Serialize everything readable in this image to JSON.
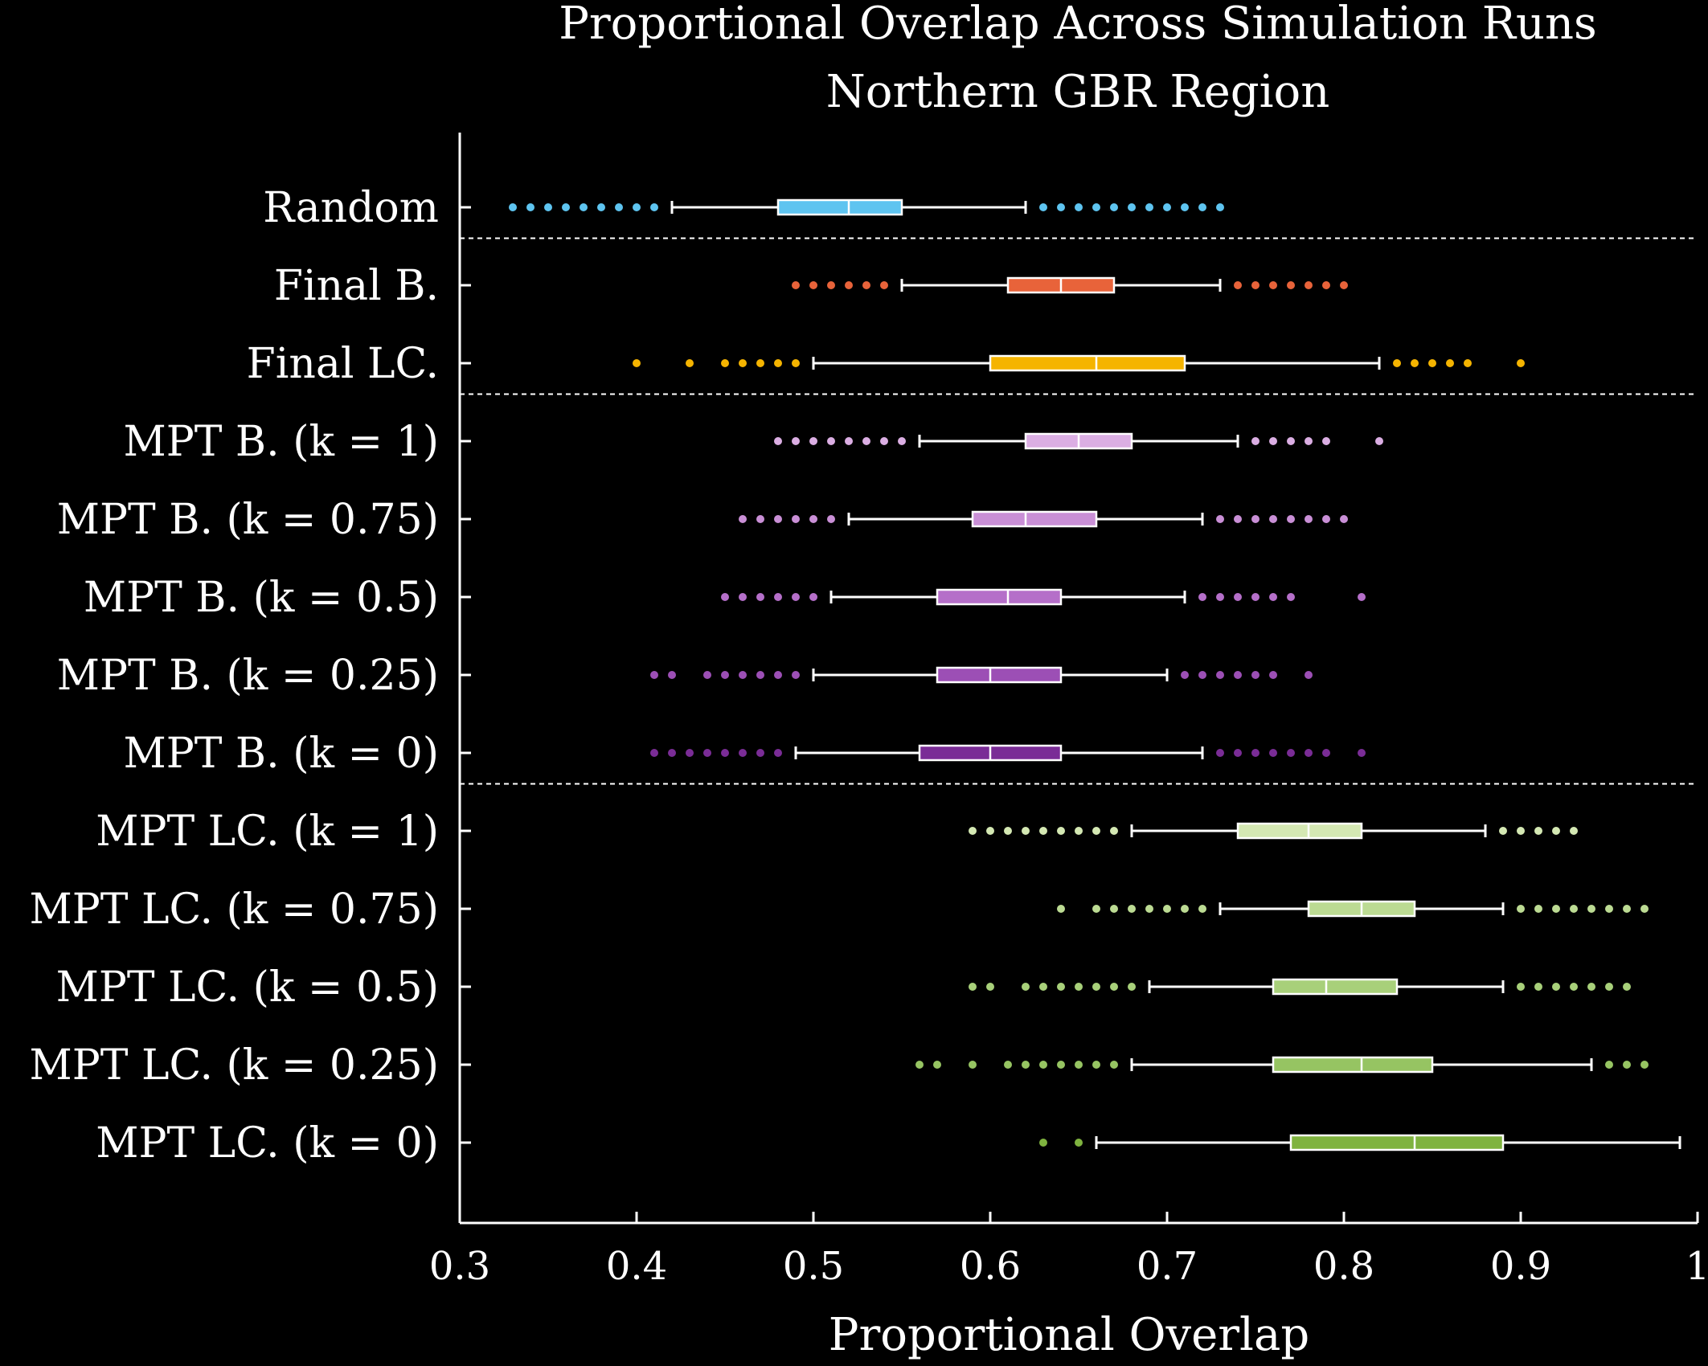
{
  "chart_data": {
    "type": "box",
    "title": "Proportional Overlap Across Simulation Runs",
    "subtitle": "Northern GBR Region",
    "xlabel": "Proportional Overlap",
    "ylabel": "",
    "xlim": [
      0.3,
      1.0
    ],
    "xticks": [
      "0.3",
      "0.4",
      "0.5",
      "0.6",
      "0.7",
      "0.8",
      "0.9",
      "1"
    ],
    "grid": false,
    "series": [
      {
        "name": "Random",
        "color": "#5ec4f0",
        "q1": 0.48,
        "median": 0.52,
        "q3": 0.55,
        "whisker_low": 0.42,
        "whisker_high": 0.62,
        "outliers": [
          0.33,
          0.34,
          0.35,
          0.36,
          0.37,
          0.38,
          0.39,
          0.4,
          0.41,
          0.63,
          0.64,
          0.65,
          0.66,
          0.67,
          0.68,
          0.69,
          0.7,
          0.71,
          0.72,
          0.73
        ]
      },
      {
        "name": "Final B.",
        "color": "#e8633a",
        "q1": 0.61,
        "median": 0.64,
        "q3": 0.67,
        "whisker_low": 0.55,
        "whisker_high": 0.73,
        "outliers": [
          0.49,
          0.5,
          0.51,
          0.52,
          0.53,
          0.54,
          0.74,
          0.75,
          0.76,
          0.77,
          0.78,
          0.79,
          0.8
        ]
      },
      {
        "name": "Final LC.",
        "color": "#f5b400",
        "q1": 0.6,
        "median": 0.66,
        "q3": 0.71,
        "whisker_low": 0.5,
        "whisker_high": 0.82,
        "outliers": [
          0.4,
          0.43,
          0.45,
          0.46,
          0.47,
          0.48,
          0.49,
          0.83,
          0.84,
          0.85,
          0.86,
          0.87,
          0.9
        ]
      },
      {
        "name": "MPT B. (k = 1)",
        "color": "#dbaee3",
        "q1": 0.62,
        "median": 0.65,
        "q3": 0.68,
        "whisker_low": 0.56,
        "whisker_high": 0.74,
        "outliers": [
          0.48,
          0.49,
          0.5,
          0.51,
          0.52,
          0.53,
          0.54,
          0.55,
          0.75,
          0.76,
          0.77,
          0.78,
          0.79,
          0.82
        ]
      },
      {
        "name": "MPT B. (k = 0.75)",
        "color": "#c98fd6",
        "q1": 0.59,
        "median": 0.62,
        "q3": 0.66,
        "whisker_low": 0.52,
        "whisker_high": 0.72,
        "outliers": [
          0.46,
          0.47,
          0.48,
          0.49,
          0.5,
          0.51,
          0.73,
          0.74,
          0.75,
          0.76,
          0.77,
          0.78,
          0.79,
          0.8
        ]
      },
      {
        "name": "MPT B. (k = 0.5)",
        "color": "#b56fc9",
        "q1": 0.57,
        "median": 0.61,
        "q3": 0.64,
        "whisker_low": 0.51,
        "whisker_high": 0.71,
        "outliers": [
          0.45,
          0.46,
          0.47,
          0.48,
          0.49,
          0.5,
          0.72,
          0.73,
          0.74,
          0.75,
          0.76,
          0.77,
          0.81
        ]
      },
      {
        "name": "MPT B. (k = 0.25)",
        "color": "#9c4fb5",
        "q1": 0.57,
        "median": 0.6,
        "q3": 0.64,
        "whisker_low": 0.5,
        "whisker_high": 0.7,
        "outliers": [
          0.41,
          0.42,
          0.44,
          0.45,
          0.46,
          0.47,
          0.48,
          0.49,
          0.71,
          0.72,
          0.73,
          0.74,
          0.75,
          0.76,
          0.78
        ]
      },
      {
        "name": "MPT B. (k = 0)",
        "color": "#7a2c96",
        "q1": 0.56,
        "median": 0.6,
        "q3": 0.64,
        "whisker_low": 0.49,
        "whisker_high": 0.72,
        "outliers": [
          0.41,
          0.42,
          0.43,
          0.44,
          0.45,
          0.46,
          0.47,
          0.48,
          0.73,
          0.74,
          0.75,
          0.76,
          0.77,
          0.78,
          0.79,
          0.81
        ]
      },
      {
        "name": "MPT LC. (k = 1)",
        "color": "#d4e8b3",
        "q1": 0.74,
        "median": 0.78,
        "q3": 0.81,
        "whisker_low": 0.68,
        "whisker_high": 0.88,
        "outliers": [
          0.59,
          0.6,
          0.61,
          0.62,
          0.63,
          0.64,
          0.65,
          0.66,
          0.67,
          0.89,
          0.9,
          0.91,
          0.92,
          0.93
        ]
      },
      {
        "name": "MPT LC. (k = 0.75)",
        "color": "#bcdb93",
        "q1": 0.78,
        "median": 0.81,
        "q3": 0.84,
        "whisker_low": 0.73,
        "whisker_high": 0.89,
        "outliers": [
          0.64,
          0.66,
          0.67,
          0.68,
          0.69,
          0.7,
          0.71,
          0.72,
          0.9,
          0.91,
          0.92,
          0.93,
          0.94,
          0.95,
          0.96,
          0.97
        ]
      },
      {
        "name": "MPT LC. (k = 0.5)",
        "color": "#a8d07a",
        "q1": 0.76,
        "median": 0.79,
        "q3": 0.83,
        "whisker_low": 0.69,
        "whisker_high": 0.89,
        "outliers": [
          0.59,
          0.6,
          0.62,
          0.63,
          0.64,
          0.65,
          0.66,
          0.67,
          0.68,
          0.9,
          0.91,
          0.92,
          0.93,
          0.94,
          0.95,
          0.96
        ]
      },
      {
        "name": "MPT LC. (k = 0.25)",
        "color": "#96c462",
        "q1": 0.76,
        "median": 0.81,
        "q3": 0.85,
        "whisker_low": 0.68,
        "whisker_high": 0.94,
        "outliers": [
          0.56,
          0.57,
          0.59,
          0.61,
          0.62,
          0.63,
          0.64,
          0.65,
          0.66,
          0.67,
          0.95,
          0.96,
          0.97
        ]
      },
      {
        "name": "MPT LC. (k = 0)",
        "color": "#7fb33f",
        "q1": 0.77,
        "median": 0.84,
        "q3": 0.89,
        "whisker_low": 0.66,
        "whisker_high": 0.99,
        "outliers": [
          0.63,
          0.65
        ]
      }
    ],
    "group_separators_after": [
      "Random",
      "Final LC.",
      "MPT B. (k = 0)"
    ]
  }
}
